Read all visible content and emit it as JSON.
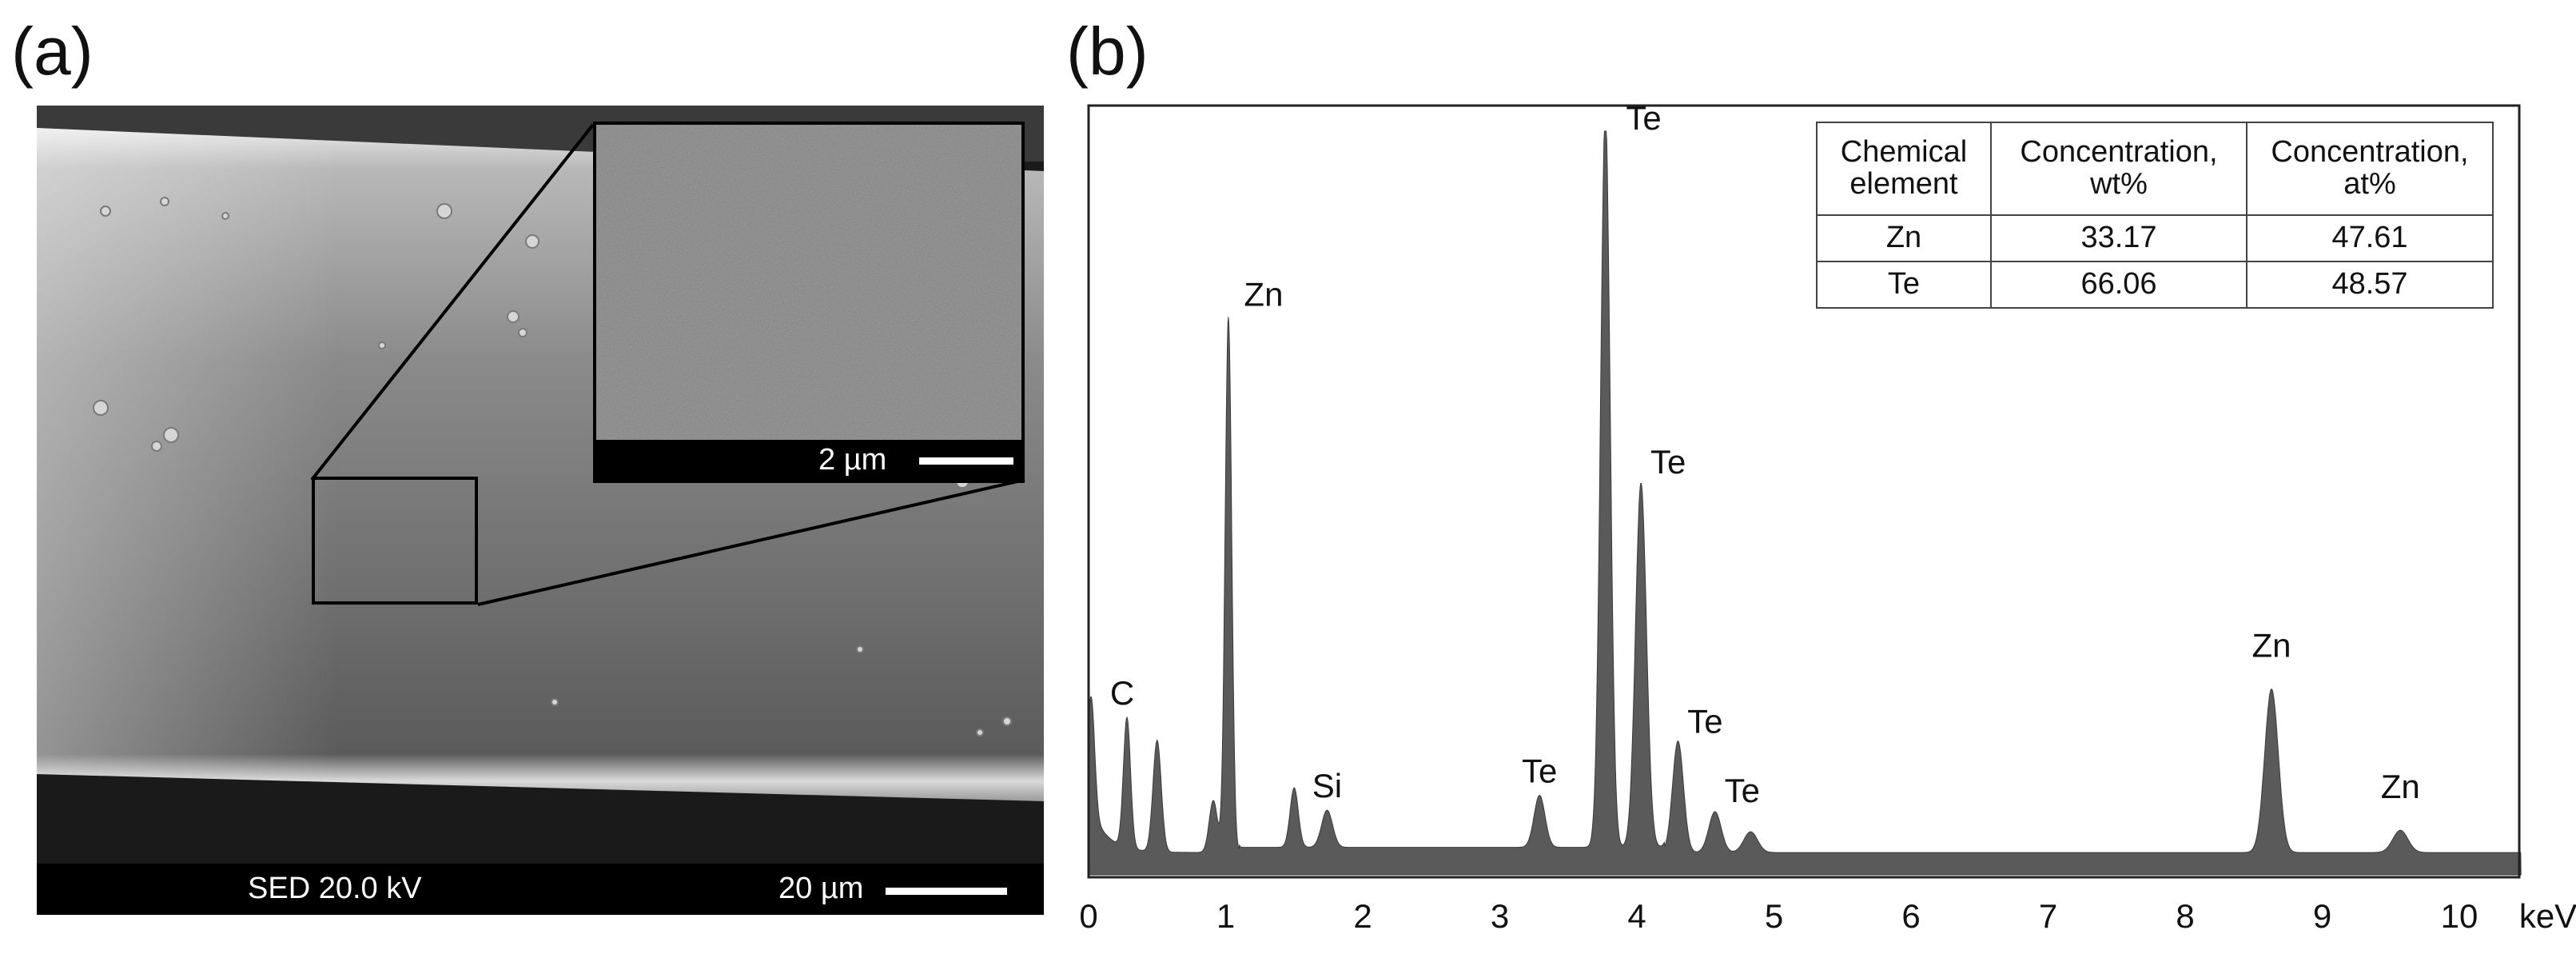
{
  "figure": {
    "panel_a_label": "(a)",
    "panel_b_label": "(b)"
  },
  "sem": {
    "info": "SED 20.0 kV",
    "scale_bar": "20 µm",
    "inset_scale_bar": "2 µm"
  },
  "eds_table": {
    "headers": [
      "Chemical element",
      "Concentration, wt%",
      "Concentration, at%"
    ],
    "rows": [
      {
        "element": "Zn",
        "wt": "33.17",
        "at": "47.61"
      },
      {
        "element": "Te",
        "wt": "66.06",
        "at": "48.57"
      }
    ]
  },
  "chart_data": {
    "type": "area",
    "xlabel": "keV",
    "xlim": [
      0,
      10.45
    ],
    "ylim": [
      0,
      1
    ],
    "x_ticks": [
      "0",
      "1",
      "2",
      "3",
      "4",
      "5",
      "6",
      "7",
      "8",
      "9",
      "10"
    ],
    "fill_color": "#5a5a5a",
    "background": {
      "level": 0.03,
      "plateau_level": 0.037,
      "start_level": 0.1
    },
    "peaks": [
      {
        "label": "",
        "center": 0.02,
        "height": 0.15,
        "width": 0.025
      },
      {
        "label": "C",
        "center": 0.28,
        "height": 0.175,
        "width": 0.026
      },
      {
        "label": "",
        "center": 0.5,
        "height": 0.15,
        "width": 0.03
      },
      {
        "label": "",
        "center": 0.91,
        "height": 0.07,
        "width": 0.03
      },
      {
        "label": "Zn",
        "center": 1.02,
        "height": 0.72,
        "width": 0.024
      },
      {
        "label": "",
        "center": 1.5,
        "height": 0.08,
        "width": 0.03
      },
      {
        "label": "Si",
        "center": 1.74,
        "height": 0.05,
        "width": 0.04
      },
      {
        "label": "Te",
        "center": 3.29,
        "height": 0.07,
        "width": 0.04
      },
      {
        "label": "Te",
        "center": 3.77,
        "height": 0.99,
        "width": 0.035
      },
      {
        "label": "Te",
        "center": 4.03,
        "height": 0.49,
        "width": 0.04
      },
      {
        "label": "Te",
        "center": 4.3,
        "height": 0.15,
        "width": 0.04
      },
      {
        "label": "Te",
        "center": 4.57,
        "height": 0.055,
        "width": 0.045
      },
      {
        "label": "",
        "center": 4.83,
        "height": 0.028,
        "width": 0.05
      },
      {
        "label": "Zn",
        "center": 8.63,
        "height": 0.22,
        "width": 0.05
      },
      {
        "label": "Zn",
        "center": 9.57,
        "height": 0.03,
        "width": 0.055
      }
    ]
  }
}
